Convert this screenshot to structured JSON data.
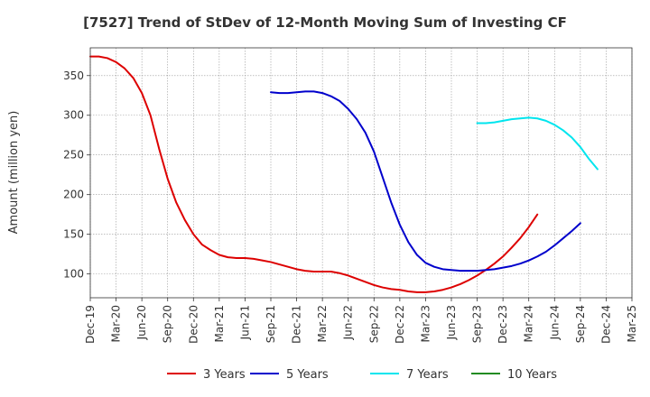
{
  "chart_data": {
    "type": "line",
    "title": "[7527]  Trend of StDev of 12-Month Moving Sum of Investing CF",
    "xlabel": "",
    "ylabel": "Amount (million yen)",
    "x_tick_labels": [
      "Dec-19",
      "Mar-20",
      "Jun-20",
      "Sep-20",
      "Dec-20",
      "Mar-21",
      "Jun-21",
      "Sep-21",
      "Dec-21",
      "Mar-22",
      "Jun-22",
      "Sep-22",
      "Dec-22",
      "Mar-23",
      "Jun-23",
      "Sep-23",
      "Dec-23",
      "Mar-24",
      "Jun-24",
      "Sep-24",
      "Dec-24",
      "Mar-25"
    ],
    "y_ticks": [
      100,
      150,
      200,
      250,
      300,
      350
    ],
    "ylim": [
      70,
      385
    ],
    "grid": true,
    "legend_position": "bottom",
    "series": [
      {
        "name": "3 Years",
        "color": "#dd0000",
        "start_index": 0,
        "values": [
          374,
          374,
          372,
          367,
          359,
          347,
          328,
          300,
          258,
          220,
          190,
          168,
          150,
          137,
          130,
          124,
          121,
          120,
          120,
          119,
          117,
          115,
          112,
          109,
          106,
          104,
          103,
          103,
          103,
          101,
          98,
          94,
          90,
          86,
          83,
          81,
          80,
          78,
          77,
          77,
          78,
          80,
          83,
          87,
          92,
          98,
          105,
          113,
          122,
          133,
          145,
          159,
          175
        ]
      },
      {
        "name": "5 Years",
        "color": "#0000cc",
        "start_index": 21,
        "values": [
          329,
          328,
          328,
          329,
          330,
          330,
          328,
          324,
          318,
          308,
          295,
          278,
          254,
          222,
          190,
          162,
          140,
          124,
          114,
          109,
          106,
          105,
          104,
          104,
          104,
          105,
          106,
          108,
          110,
          113,
          117,
          122,
          128,
          136,
          145,
          154,
          164
        ]
      },
      {
        "name": "7 Years",
        "color": "#00e5ee",
        "start_index": 45,
        "values": [
          290,
          290,
          291,
          293,
          295,
          296,
          297,
          296,
          293,
          288,
          281,
          272,
          260,
          245,
          232
        ]
      },
      {
        "name": "10 Years",
        "color": "#228b22",
        "start_index": 0,
        "values": []
      }
    ]
  }
}
